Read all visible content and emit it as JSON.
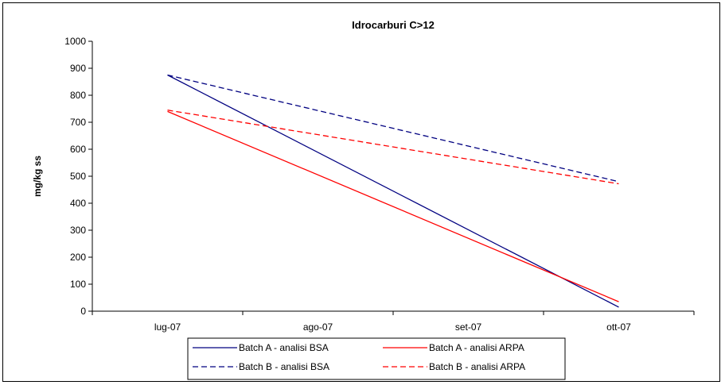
{
  "chart_data": {
    "type": "line",
    "title": "Idrocarburi C>12",
    "xlabel": "",
    "ylabel": "mg/kg ss",
    "categories": [
      "lug-07",
      "ago-07",
      "set-07",
      "ott-07"
    ],
    "ylim": [
      0,
      1000
    ],
    "yticks": [
      0,
      100,
      200,
      300,
      400,
      500,
      600,
      700,
      800,
      900,
      1000
    ],
    "grid": false,
    "legend_position": "bottom",
    "series": [
      {
        "name": "Batch A - analisi BSA",
        "color": "#000080",
        "dash": "solid",
        "points": [
          {
            "x": "lug-07",
            "y": 875
          },
          {
            "x": "ott-07",
            "y": 15
          }
        ]
      },
      {
        "name": "Batch A - analisi ARPA",
        "color": "#ff0000",
        "dash": "solid",
        "points": [
          {
            "x": "lug-07",
            "y": 740
          },
          {
            "x": "ott-07",
            "y": 35
          }
        ]
      },
      {
        "name": "Batch B - analisi BSA",
        "color": "#000080",
        "dash": "dashed",
        "points": [
          {
            "x": "lug-07",
            "y": 875
          },
          {
            "x": "ott-07",
            "y": 480
          }
        ]
      },
      {
        "name": "Batch B - analisi ARPA",
        "color": "#ff0000",
        "dash": "dashed",
        "points": [
          {
            "x": "lug-07",
            "y": 745
          },
          {
            "x": "ott-07",
            "y": 472
          }
        ]
      }
    ]
  }
}
